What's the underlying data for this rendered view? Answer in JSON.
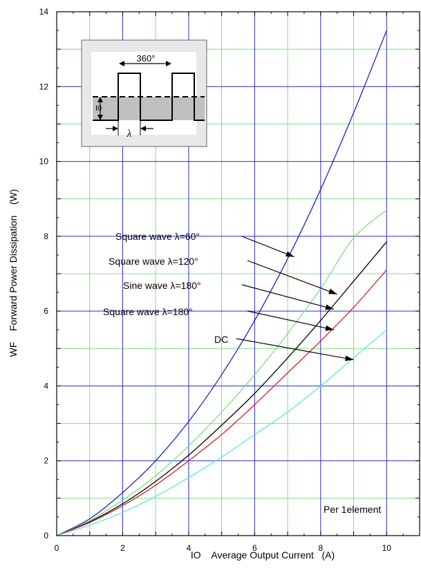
{
  "chart_data": {
    "type": "line",
    "xlabel": "IO    Average Output Current   (A)",
    "ylabel": "WF    Forward Power Dissipation    (W)",
    "xlim": [
      0,
      11
    ],
    "ylim": [
      0,
      14
    ],
    "x_major_ticks": [
      0,
      2,
      4,
      6,
      8,
      10
    ],
    "y_major_ticks": [
      0,
      2,
      4,
      6,
      8,
      10,
      12,
      14
    ],
    "grid": true,
    "grid_colors": {
      "major": "#2a2ad6",
      "minor": "#7ee07e"
    },
    "note": "Per 1element",
    "series": [
      {
        "name": "Square wave λ=60°",
        "color": "#2020c8",
        "x": [
          0,
          1,
          2,
          3,
          4,
          5,
          6,
          7,
          8,
          9,
          10
        ],
        "y": [
          0,
          0.45,
          1.15,
          2.0,
          3.05,
          4.3,
          5.75,
          7.4,
          9.25,
          11.3,
          13.5
        ]
      },
      {
        "name": "Square wave λ=120°",
        "color": "#7ae37a",
        "x": [
          0,
          1,
          2,
          3,
          4,
          5,
          6,
          7,
          8,
          9,
          10
        ],
        "y": [
          0,
          0.4,
          0.95,
          1.6,
          2.4,
          3.3,
          4.3,
          5.4,
          6.6,
          7.95,
          8.7
        ]
      },
      {
        "name": "Sine wave λ=180°",
        "color": "#000000",
        "x": [
          0,
          1,
          2,
          3,
          4,
          5,
          6,
          7,
          8,
          9,
          10
        ],
        "y": [
          0,
          0.37,
          0.85,
          1.45,
          2.15,
          2.95,
          3.8,
          4.75,
          5.75,
          6.8,
          7.85
        ]
      },
      {
        "name": "Square wave λ=180°",
        "color": "#d42020",
        "x": [
          0,
          1,
          2,
          3,
          4,
          5,
          6,
          7,
          8,
          9,
          10
        ],
        "y": [
          0,
          0.35,
          0.8,
          1.35,
          2.0,
          2.7,
          3.5,
          4.35,
          5.2,
          6.1,
          7.1
        ]
      },
      {
        "name": "DC",
        "color": "#5fe3e8",
        "x": [
          0,
          1,
          2,
          3,
          4,
          5,
          6,
          7,
          8,
          9,
          10
        ],
        "y": [
          0,
          0.28,
          0.62,
          1.05,
          1.55,
          2.1,
          2.7,
          3.3,
          4.0,
          4.75,
          5.5
        ]
      }
    ],
    "annotations": [
      {
        "text": "Square wave λ=60°",
        "points_to": {
          "x": 7.2,
          "y": 7.45
        }
      },
      {
        "text": "Square wave λ=120°",
        "points_to": {
          "x": 8.5,
          "y": 6.45
        }
      },
      {
        "text": "Sine wave λ=180°",
        "points_to": {
          "x": 8.4,
          "y": 6.05
        }
      },
      {
        "text": "Square wave λ=180°",
        "points_to": {
          "x": 8.4,
          "y": 5.5
        }
      },
      {
        "text": "DC",
        "points_to": {
          "x": 9.0,
          "y": 4.7
        }
      }
    ],
    "inset": {
      "angle_label": "360°",
      "current_label": "I0",
      "width_label": "λ"
    }
  }
}
